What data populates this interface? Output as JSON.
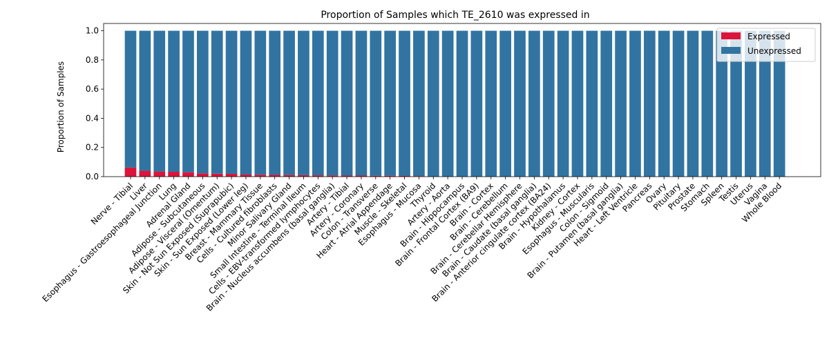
{
  "chart_data": {
    "type": "bar",
    "stacked": true,
    "title": "Proportion of Samples which TE_2610 was expressed in",
    "xlabel": "",
    "ylabel": "Proportion of Samples",
    "ylim": [
      0,
      1.05
    ],
    "yticks": [
      "0.0",
      "0.2",
      "0.4",
      "0.6",
      "0.8",
      "1.0"
    ],
    "grid": false,
    "legend_position": "top-right",
    "categories": [
      "Nerve - Tibial",
      "Liver",
      "Esophagus - Gastroesophageal Junction",
      "Lung",
      "Adrenal Gland",
      "Adipose - Subcutaneous",
      "Adipose - Visceral (Omentum)",
      "Skin - Not Sun Exposed (Suprapubic)",
      "Skin - Sun Exposed (Lower leg)",
      "Breast - Mammary Tissue",
      "Cells - Cultured fibroblasts",
      "Minor Salivary Gland",
      "Small Intestine - Terminal Ileum",
      "Cells - EBV-transformed lymphocytes",
      "Brain - Nucleus accumbens (basal ganglia)",
      "Artery - Tibial",
      "Artery - Coronary",
      "Colon - Transverse",
      "Heart - Atrial Appendage",
      "Muscle - Skeletal",
      "Esophagus - Mucosa",
      "Thyroid",
      "Artery - Aorta",
      "Brain - Hippocampus",
      "Brain - Frontal Cortex (BA9)",
      "Brain - Cortex",
      "Brain - Cerebellum",
      "Brain - Cerebellar Hemisphere",
      "Brain - Caudate (basal ganglia)",
      "Brain - Anterior cingulate cortex (BA24)",
      "Brain - Hypothalamus",
      "Kidney - Cortex",
      "Esophagus - Muscularis",
      "Colon - Sigmoid",
      "Brain - Putamen (basal ganglia)",
      "Heart - Left Ventricle",
      "Pancreas",
      "Ovary",
      "Pituitary",
      "Prostate",
      "Stomach",
      "Spleen",
      "Testis",
      "Uterus",
      "Vagina",
      "Whole Blood"
    ],
    "series": [
      {
        "name": "Expressed",
        "color": "#dc143c",
        "values": [
          0.062,
          0.04,
          0.035,
          0.033,
          0.03,
          0.022,
          0.02,
          0.019,
          0.014,
          0.013,
          0.012,
          0.011,
          0.01,
          0.009,
          0.008,
          0.007,
          0.007,
          0.006,
          0.006,
          0.005,
          0.004,
          0,
          0,
          0,
          0,
          0,
          0,
          0,
          0,
          0,
          0,
          0,
          0,
          0,
          0,
          0,
          0,
          0,
          0,
          0,
          0,
          0,
          0,
          0,
          0,
          0
        ]
      },
      {
        "name": "Unexpressed",
        "color": "#3274a1",
        "values": [
          0.938,
          0.96,
          0.965,
          0.967,
          0.97,
          0.978,
          0.98,
          0.981,
          0.986,
          0.987,
          0.988,
          0.989,
          0.99,
          0.991,
          0.992,
          0.993,
          0.993,
          0.994,
          0.994,
          0.995,
          0.996,
          1,
          1,
          1,
          1,
          1,
          1,
          1,
          1,
          1,
          1,
          1,
          1,
          1,
          1,
          1,
          1,
          1,
          1,
          1,
          1,
          1,
          1,
          1,
          1,
          1
        ]
      }
    ]
  }
}
